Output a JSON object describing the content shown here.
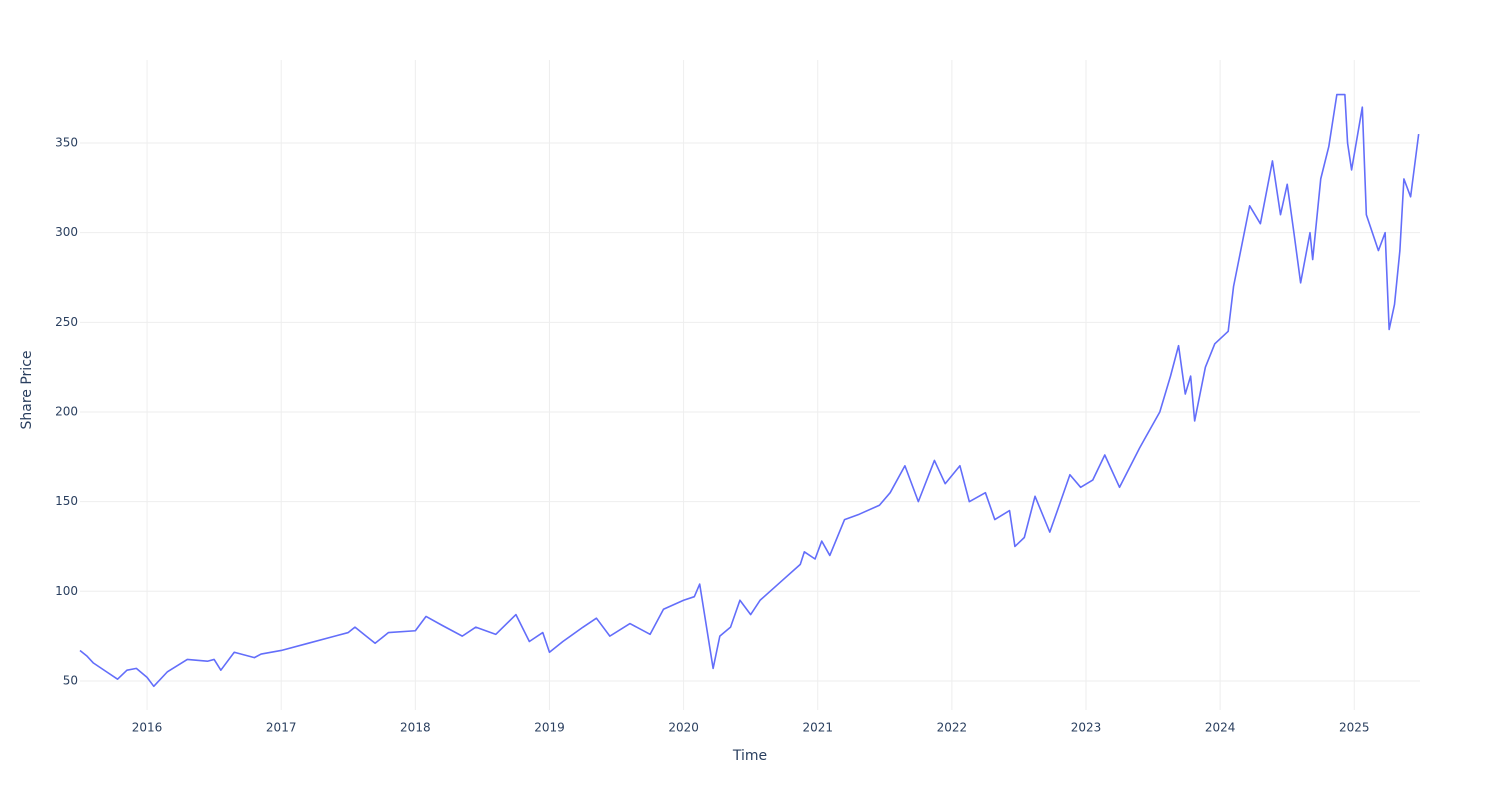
{
  "chart_data": {
    "type": "line",
    "x_label": "Time",
    "y_label": "Share Price",
    "xlim": [
      2015.5,
      2025.49
    ],
    "xticks": [
      2016,
      2017,
      2018,
      2019,
      2020,
      2021,
      2022,
      2023,
      2024,
      2025
    ],
    "ylim": [
      33.8,
      396.3
    ],
    "yticks": [
      50,
      100,
      150,
      200,
      250,
      300,
      350
    ],
    "grid": true,
    "x": [
      2015.5,
      2015.55,
      2015.6,
      2015.7,
      2015.78,
      2015.85,
      2015.92,
      2016.0,
      2016.05,
      2016.15,
      2016.3,
      2016.45,
      2016.5,
      2016.55,
      2016.65,
      2016.8,
      2016.85,
      2017.0,
      2017.2,
      2017.4,
      2017.5,
      2017.55,
      2017.7,
      2017.8,
      2018.0,
      2018.08,
      2018.2,
      2018.35,
      2018.45,
      2018.6,
      2018.75,
      2018.85,
      2018.95,
      2019.0,
      2019.1,
      2019.25,
      2019.35,
      2019.45,
      2019.6,
      2019.75,
      2019.85,
      2020.0,
      2020.08,
      2020.12,
      2020.22,
      2020.27,
      2020.35,
      2020.42,
      2020.5,
      2020.57,
      2020.72,
      2020.87,
      2020.9,
      2020.98,
      2021.03,
      2021.09,
      2021.2,
      2021.31,
      2021.46,
      2021.54,
      2021.65,
      2021.75,
      2021.87,
      2021.95,
      2022.06,
      2022.13,
      2022.25,
      2022.32,
      2022.43,
      2022.47,
      2022.54,
      2022.62,
      2022.73,
      2022.81,
      2022.88,
      2022.96,
      2023.05,
      2023.14,
      2023.25,
      2023.4,
      2023.55,
      2023.63,
      2023.69,
      2023.74,
      2023.78,
      2023.81,
      2023.89,
      2023.96,
      2024.06,
      2024.1,
      2024.22,
      2024.3,
      2024.39,
      2024.45,
      2024.5,
      2024.55,
      2024.6,
      2024.67,
      2024.69,
      2024.75,
      2024.81,
      2024.87,
      2024.93,
      2024.95,
      2024.98,
      2025.06,
      2025.09,
      2025.18,
      2025.23,
      2025.26,
      2025.3,
      2025.34,
      2025.37,
      2025.42,
      2025.48
    ],
    "series": [
      {
        "name": "Share Price",
        "color": "#636efa",
        "values": [
          67,
          64,
          60,
          55,
          51,
          56,
          57,
          52,
          47,
          55,
          62,
          61,
          62,
          56,
          66,
          63,
          65,
          67,
          71,
          75,
          77,
          80,
          71,
          77,
          78,
          86,
          81,
          75,
          80,
          76,
          87,
          72,
          77,
          66,
          72,
          80,
          85,
          75,
          82,
          76,
          90,
          95,
          97,
          104,
          57,
          75,
          80,
          95,
          87,
          95,
          105,
          115,
          122,
          118,
          128,
          120,
          140,
          143,
          148,
          155,
          170,
          150,
          173,
          160,
          170,
          150,
          155,
          140,
          145,
          125,
          130,
          153,
          133,
          150,
          165,
          158,
          162,
          176,
          158,
          180,
          200,
          220,
          237,
          210,
          220,
          195,
          225,
          238,
          245,
          270,
          315,
          305,
          340,
          310,
          327,
          300,
          272,
          300,
          285,
          330,
          348,
          377,
          377,
          350,
          335,
          370,
          310,
          290,
          300,
          246,
          260,
          290,
          330,
          320,
          355
        ]
      }
    ]
  }
}
